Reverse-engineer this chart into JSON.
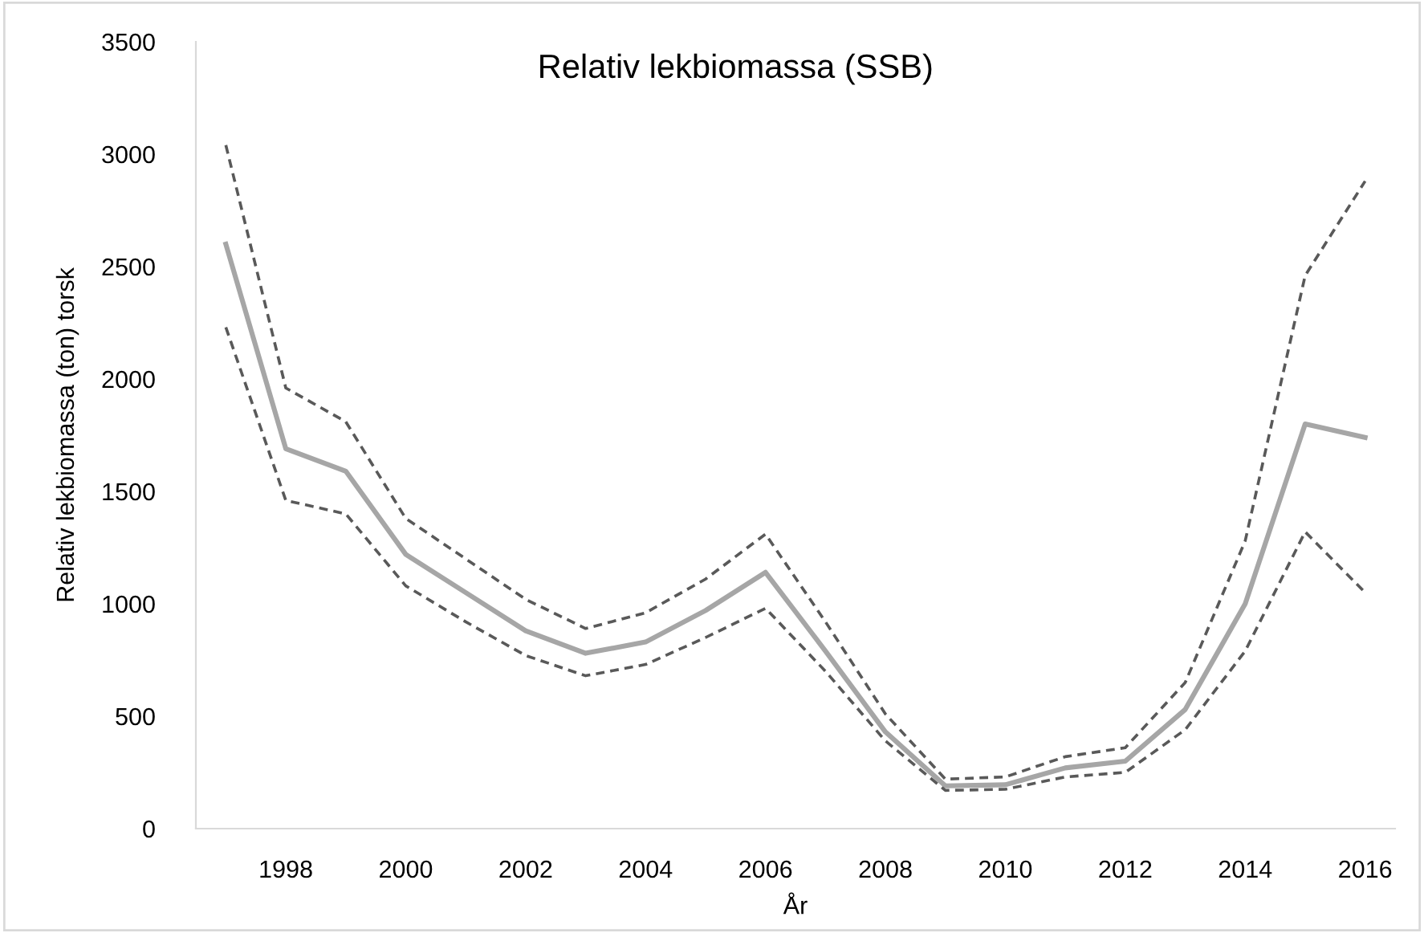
{
  "chart_data": {
    "type": "line",
    "title": "Relativ lekbiomassa (SSB)",
    "xlabel": "År",
    "ylabel": "Relativ lekbiomassa (ton) torsk",
    "x": [
      1997,
      1998,
      1999,
      2000,
      2001,
      2002,
      2003,
      2004,
      2005,
      2006,
      2007,
      2008,
      2009,
      2010,
      2011,
      2012,
      2013,
      2014,
      2015,
      2016
    ],
    "series": [
      {
        "color": "#595959",
        "line_style": "dashed",
        "values": [
          3040,
          1960,
          1810,
          1380,
          1200,
          1020,
          890,
          960,
          1110,
          1310,
          920,
          510,
          220,
          230,
          320,
          360,
          650,
          1280,
          2460,
          2880
        ]
      },
      {
        "color": "#a6a6a6",
        "line_style": "solid",
        "values": [
          2600,
          1690,
          1590,
          1220,
          1050,
          880,
          780,
          830,
          970,
          1140,
          790,
          430,
          190,
          195,
          270,
          300,
          530,
          1000,
          1800,
          1740
        ]
      },
      {
        "color": "#595959",
        "line_style": "dashed",
        "values": [
          2230,
          1460,
          1400,
          1080,
          920,
          770,
          680,
          730,
          850,
          980,
          700,
          390,
          170,
          175,
          230,
          250,
          440,
          790,
          1320,
          1050
        ]
      }
    ],
    "xlim": [
      1996.5,
      2016.5
    ],
    "xticks": [
      1998,
      2000,
      2002,
      2004,
      2006,
      2008,
      2010,
      2012,
      2014,
      2016
    ],
    "ylim": [
      0,
      3500
    ],
    "yticks": [
      0,
      500,
      1000,
      1500,
      2000,
      2500,
      3000,
      3500
    ],
    "grid": false,
    "legend": false,
    "marker": "none"
  }
}
